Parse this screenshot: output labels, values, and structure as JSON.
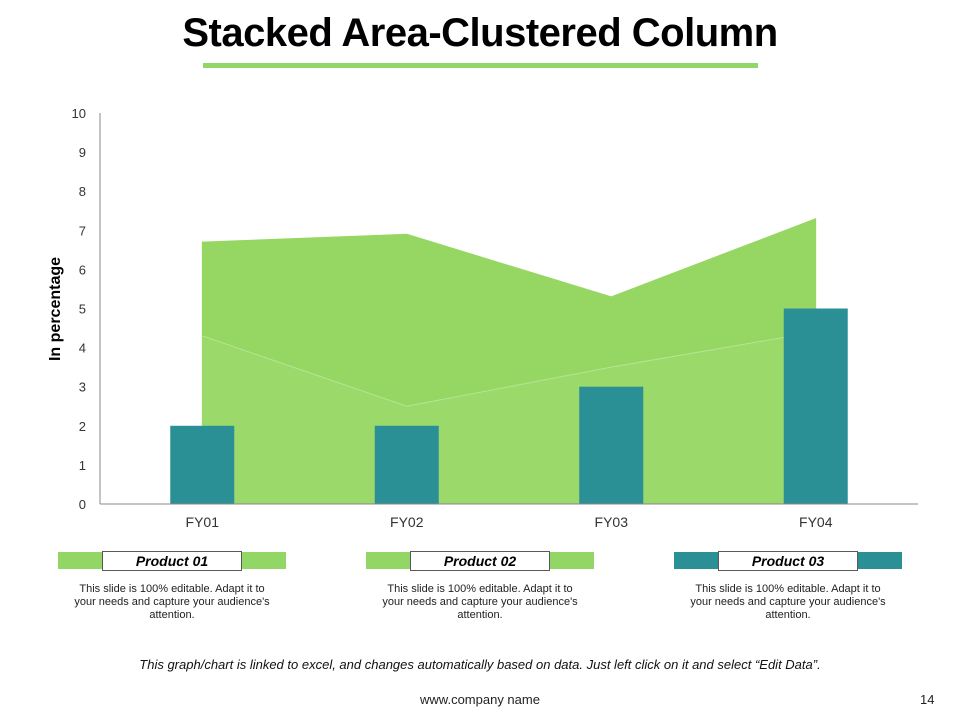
{
  "slide": {
    "title": "Stacked Area-Clustered Column",
    "footnote": "This graph/chart is linked to excel, and changes automatically based on data.  Just left click on it and select “Edit Data”.",
    "website": "www.company name",
    "page_number": "14"
  },
  "colors": {
    "accent_green": "#92d665",
    "area_light": "#9ad96a",
    "area_dark": "#95d762",
    "column_teal": "#2b9096",
    "axis": "#888888"
  },
  "chart_data": {
    "type": "bar",
    "title": "",
    "ylabel": "In percentage",
    "xlabel": "",
    "categories": [
      "FY01",
      "FY02",
      "FY03",
      "FY04"
    ],
    "ylim": [
      0,
      10
    ],
    "yticks": [
      0,
      1,
      2,
      3,
      4,
      5,
      6,
      7,
      8,
      9,
      10
    ],
    "stacked_area": [
      {
        "name": "Product 01",
        "values": [
          4.3,
          2.5,
          3.5,
          4.4
        ]
      },
      {
        "name": "Product 02",
        "values": [
          2.4,
          4.4,
          1.8,
          2.9
        ]
      }
    ],
    "columns": [
      {
        "name": "Product 03",
        "values": [
          2,
          2,
          3,
          5
        ]
      }
    ],
    "grid": false,
    "legend_position": "bottom"
  },
  "legend": [
    {
      "label": "Product 01",
      "color": "#92d665",
      "desc": "This slide is 100% editable. Adapt it to your needs and capture your audience's attention."
    },
    {
      "label": "Product 02",
      "color": "#92d665",
      "desc": "This slide is 100% editable. Adapt it to your needs and capture your audience's attention."
    },
    {
      "label": "Product 03",
      "color": "#2b9096",
      "desc": "This slide is 100% editable. Adapt it to your needs and capture your audience's attention."
    }
  ]
}
